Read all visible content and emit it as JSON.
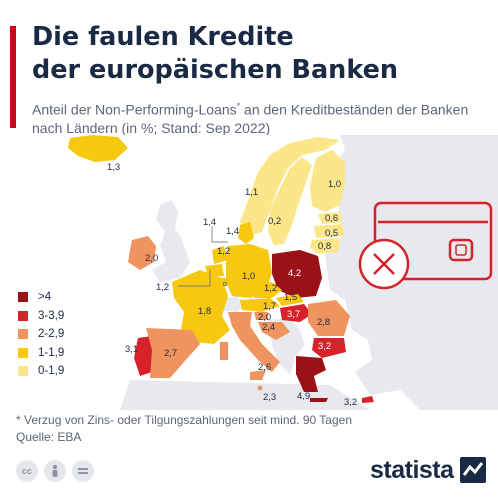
{
  "title_line1": "Die faulen Kredite",
  "title_line2": "der europäischen Banken",
  "subtitle_part1": "Anteil der Non-Performing-Loans",
  "subtitle_sup": "*",
  "subtitle_part2": " an den Kreditbeständen der Banken nach Ländern (in %; Stand: Sep 2022)",
  "legend": [
    {
      "label": ">4",
      "color": "#9b1118"
    },
    {
      "label": "3-3,9",
      "color": "#d7222a"
    },
    {
      "label": "2-2,9",
      "color": "#f0945f"
    },
    {
      "label": "1-1,9",
      "color": "#f6c80f"
    },
    {
      "label": "0-1,9",
      "color": "#fce68a"
    }
  ],
  "countries": [
    {
      "name": "Iceland",
      "value": "1,3"
    },
    {
      "name": "Ireland",
      "value": "2,0"
    },
    {
      "name": "Norway",
      "value": "1,1"
    },
    {
      "name": "Sweden",
      "value": "0,2"
    },
    {
      "name": "Finland",
      "value": "1,0"
    },
    {
      "name": "Estonia",
      "value": "0,6"
    },
    {
      "name": "Latvia",
      "value": "0,5"
    },
    {
      "name": "Lithuania",
      "value": "0,8"
    },
    {
      "name": "Denmark",
      "value": "1,4"
    },
    {
      "name": "Netherlands",
      "value": "1,4"
    },
    {
      "name": "Belgium",
      "value": "1,2"
    },
    {
      "name": "Luxembourg",
      "value": "1,2"
    },
    {
      "name": "Germany",
      "value": "1,0"
    },
    {
      "name": "Poland",
      "value": "4,2"
    },
    {
      "name": "France",
      "value": "1,8"
    },
    {
      "name": "Czechia",
      "value": "1,2"
    },
    {
      "name": "Slovakia",
      "value": "1,5"
    },
    {
      "name": "Austria",
      "value": "1,7"
    },
    {
      "name": "Slovenia",
      "value": "2,0"
    },
    {
      "name": "Hungary",
      "value": "3,7"
    },
    {
      "name": "Croatia",
      "value": "2,4"
    },
    {
      "name": "Romania",
      "value": "2,8"
    },
    {
      "name": "Bulgaria",
      "value": "3,2"
    },
    {
      "name": "Portugal",
      "value": "3,1"
    },
    {
      "name": "Spain",
      "value": "2,7"
    },
    {
      "name": "Italy",
      "value": "2,6"
    },
    {
      "name": "Malta",
      "value": "2,3"
    },
    {
      "name": "Greece",
      "value": "4,9"
    },
    {
      "name": "Cyprus",
      "value": "3,2"
    }
  ],
  "footnote": "* Verzug von Zins- oder Tilgungszahlungen seit mind. 90 Tagen",
  "source": "Quelle: EBA",
  "license_icons": [
    "cc-icon",
    "by-icon",
    "nd-icon"
  ],
  "brand": "statista"
}
